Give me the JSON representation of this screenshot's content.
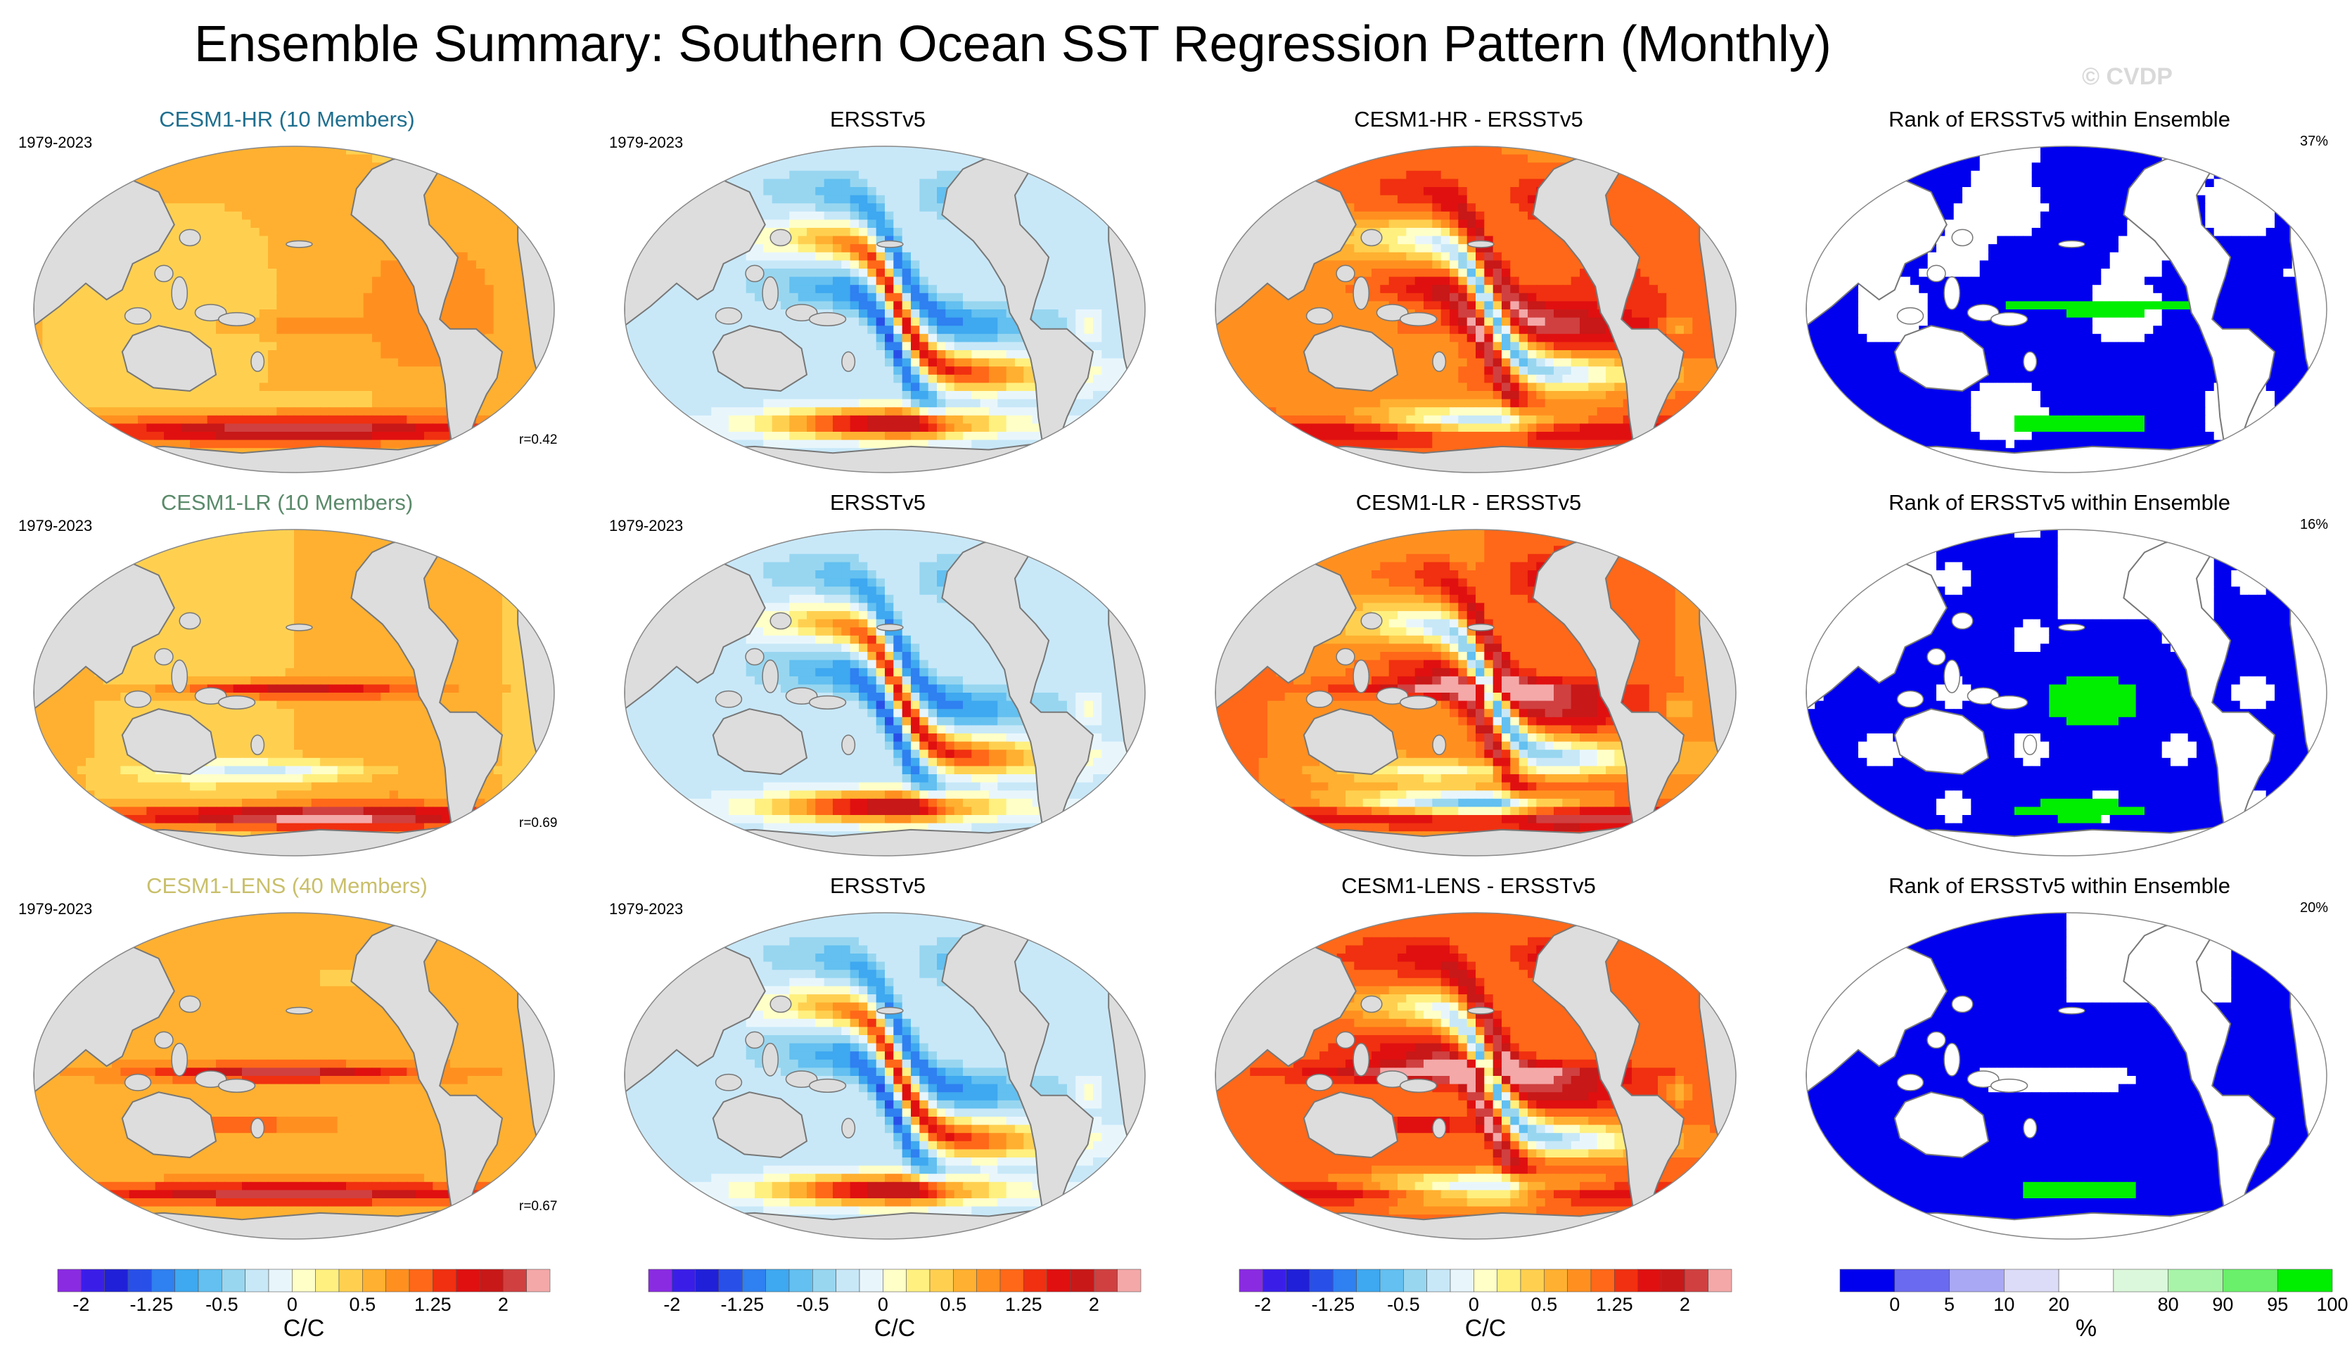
{
  "title": "Ensemble Summary: Southern Ocean SST Regression Pattern (Monthly)",
  "watermark": "© CVDP",
  "colors": {
    "cesm1_hr": "#1f6f8f",
    "cesm1_lr": "#5a8a6a",
    "cesm1_lens": "#c9bf6a",
    "land": "#dddddd",
    "coast": "#777777"
  },
  "rows": [
    {
      "ensemble": {
        "title": "CESM1-HR (10 Members)",
        "color_key": "cesm1_hr",
        "years": "1979-2023",
        "corr": "r=0.42",
        "pattern": "model_hr"
      },
      "obs": {
        "title": "ERSSTv5",
        "years": "1979-2023",
        "pattern": "obs"
      },
      "diff": {
        "title": "CESM1-HR - ERSSTv5",
        "pattern": "diff_hr"
      },
      "rank": {
        "title": "Rank of ERSSTv5 within Ensemble",
        "pct": "37%",
        "pattern": "rank_hr"
      }
    },
    {
      "ensemble": {
        "title": "CESM1-LR (10 Members)",
        "color_key": "cesm1_lr",
        "years": "1979-2023",
        "corr": "r=0.69",
        "pattern": "model_lr"
      },
      "obs": {
        "title": "ERSSTv5",
        "years": "1979-2023",
        "pattern": "obs"
      },
      "diff": {
        "title": "CESM1-LR - ERSSTv5",
        "pattern": "diff_lr"
      },
      "rank": {
        "title": "Rank of ERSSTv5 within Ensemble",
        "pct": "16%",
        "pattern": "rank_lr"
      }
    },
    {
      "ensemble": {
        "title": "CESM1-LENS (40 Members)",
        "color_key": "cesm1_lens",
        "years": "1979-2023",
        "corr": "r=0.67",
        "pattern": "model_lens"
      },
      "obs": {
        "title": "ERSSTv5",
        "years": "1979-2023",
        "pattern": "obs"
      },
      "diff": {
        "title": "CESM1-LENS - ERSSTv5",
        "pattern": "diff_lens"
      },
      "rank": {
        "title": "Rank of ERSSTv5 within Ensemble",
        "pct": "20%",
        "pattern": "rank_lens"
      }
    }
  ],
  "colorbars": [
    {
      "label": "C/C",
      "ticks": [
        "-2",
        "-1.25",
        "-0.5",
        "0",
        "0.5",
        "1.25",
        "2"
      ],
      "tick_bins": [
        1,
        4,
        7,
        10,
        13,
        16,
        19
      ],
      "scale": "sst"
    },
    {
      "label": "C/C",
      "ticks": [
        "-2",
        "-1.25",
        "-0.5",
        "0",
        "0.5",
        "1.25",
        "2"
      ],
      "tick_bins": [
        1,
        4,
        7,
        10,
        13,
        16,
        19
      ],
      "scale": "sst"
    },
    {
      "label": "C/C",
      "ticks": [
        "-2",
        "-1.25",
        "-0.5",
        "0",
        "0.5",
        "1.25",
        "2"
      ],
      "tick_bins": [
        1,
        4,
        7,
        10,
        13,
        16,
        19
      ],
      "scale": "sst"
    },
    {
      "label": "%",
      "ticks": [
        "0",
        "5",
        "10",
        "20",
        "80",
        "90",
        "95",
        "100"
      ],
      "tick_bins": [
        1,
        2,
        3,
        4,
        6,
        7,
        8,
        9
      ],
      "scale": "rank"
    }
  ],
  "chart_data": {
    "type": "heatmap",
    "title": "Ensemble Summary: Southern Ocean SST Regression Pattern (Monthly)",
    "units": "C/C",
    "period": "1979-2023",
    "projection": "Robinson (Pacific-centered)",
    "sst_scale": {
      "levels": [
        "-2",
        "-1.25",
        "-0.5",
        "0",
        "0.5",
        "1.25",
        "2"
      ],
      "colors": [
        "#8a2be2",
        "#3a1ee8",
        "#2020d8",
        "#2850e8",
        "#2f80f0",
        "#3ea8f0",
        "#63c0f0",
        "#98d6f0",
        "#c8e8f8",
        "#e8f6fc",
        "#ffffc8",
        "#fff080",
        "#ffd050",
        "#ffb030",
        "#ff9020",
        "#ff6818",
        "#f03010",
        "#e01010",
        "#c81818",
        "#d04040",
        "#f4a8a8"
      ]
    },
    "rank_scale": {
      "levels": [
        "0",
        "5",
        "10",
        "20",
        "80",
        "90",
        "95",
        "100"
      ],
      "colors": [
        "#0000ee",
        "#6a6af0",
        "#a8a8f4",
        "#dcdcf8",
        "#ffffff",
        "#dcf8dc",
        "#a8f4a8",
        "#6af06a",
        "#00ee00"
      ]
    },
    "pattern_correlations": {
      "CESM1-HR": 0.42,
      "CESM1-LR": 0.69,
      "CESM1-LENS": 0.67
    },
    "rank_percent_summary": {
      "CESM1-HR": 37,
      "CESM1-LR": 16,
      "CESM1-LENS": 20
    }
  }
}
